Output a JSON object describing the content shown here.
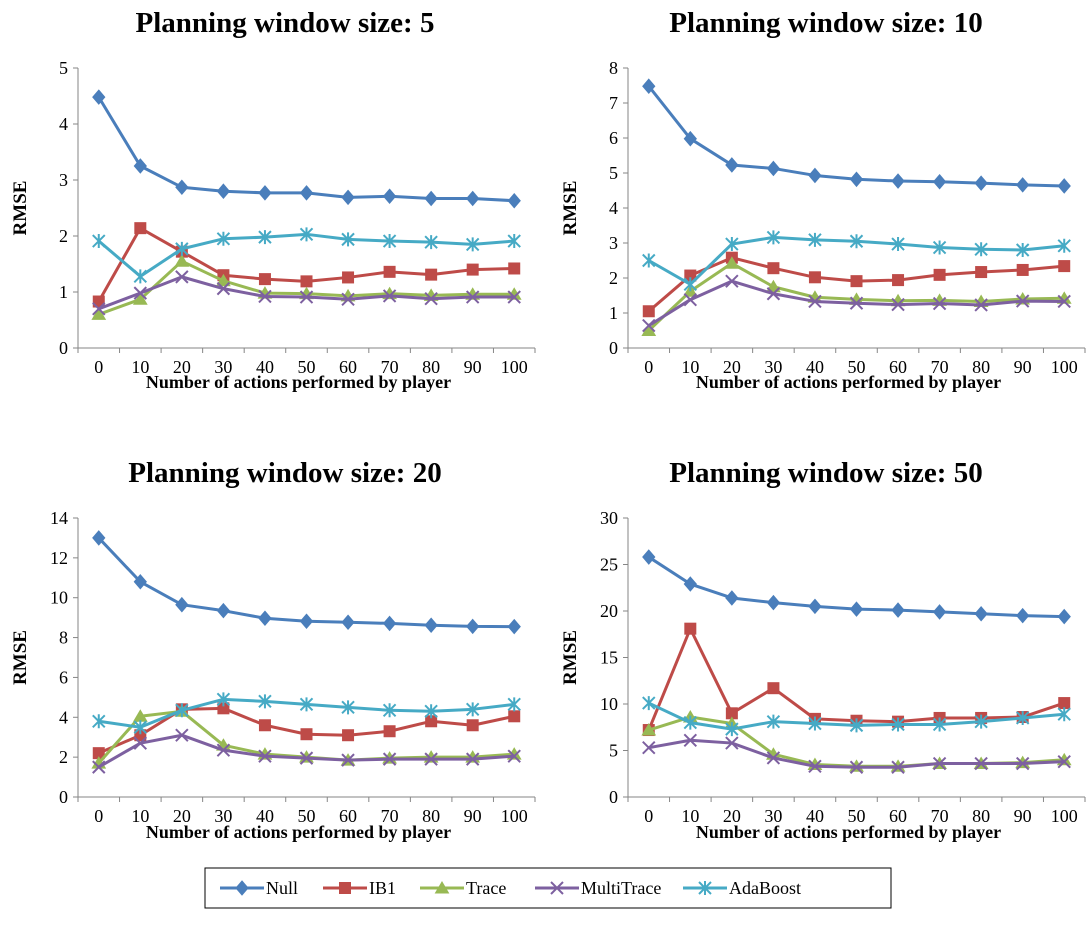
{
  "chart_data": [
    {
      "type": "line",
      "title": "Planning window size: 5",
      "xlabel": "Number of actions performed by player",
      "ylabel": "RMSE",
      "categories": [
        "0",
        "10",
        "20",
        "30",
        "40",
        "50",
        "60",
        "70",
        "80",
        "90",
        "100"
      ],
      "ylim": [
        0,
        5
      ],
      "yticks": [
        0,
        1,
        2,
        3,
        4,
        5
      ],
      "series": [
        {
          "name": "Null",
          "values": [
            4.48,
            3.25,
            2.87,
            2.8,
            2.77,
            2.77,
            2.69,
            2.71,
            2.67,
            2.67,
            2.63
          ]
        },
        {
          "name": "IB1",
          "values": [
            0.83,
            2.14,
            1.72,
            1.3,
            1.23,
            1.19,
            1.26,
            1.36,
            1.31,
            1.4,
            1.42
          ]
        },
        {
          "name": "Trace",
          "values": [
            0.6,
            0.87,
            1.55,
            1.2,
            0.98,
            0.97,
            0.93,
            0.97,
            0.94,
            0.96,
            0.96
          ]
        },
        {
          "name": "MultiTrace",
          "values": [
            0.7,
            0.98,
            1.27,
            1.06,
            0.92,
            0.91,
            0.87,
            0.93,
            0.88,
            0.91,
            0.91
          ]
        },
        {
          "name": "AdaBoost",
          "values": [
            1.91,
            1.28,
            1.77,
            1.95,
            1.98,
            2.03,
            1.94,
            1.91,
            1.89,
            1.85,
            1.91
          ]
        }
      ]
    },
    {
      "type": "line",
      "title": "Planning window size: 10",
      "xlabel": "Number of actions performed by player",
      "ylabel": "RMSE",
      "categories": [
        "0",
        "10",
        "20",
        "30",
        "40",
        "50",
        "60",
        "70",
        "80",
        "90",
        "100"
      ],
      "ylim": [
        0,
        8
      ],
      "yticks": [
        0,
        1,
        2,
        3,
        4,
        5,
        6,
        7,
        8
      ],
      "series": [
        {
          "name": "Null",
          "values": [
            7.48,
            5.98,
            5.23,
            5.13,
            4.93,
            4.82,
            4.77,
            4.75,
            4.71,
            4.66,
            4.63
          ]
        },
        {
          "name": "IB1",
          "values": [
            1.05,
            2.07,
            2.58,
            2.28,
            2.02,
            1.91,
            1.94,
            2.09,
            2.17,
            2.23,
            2.34
          ]
        },
        {
          "name": "Trace",
          "values": [
            0.5,
            1.62,
            2.42,
            1.75,
            1.45,
            1.39,
            1.35,
            1.36,
            1.33,
            1.4,
            1.42
          ]
        },
        {
          "name": "MultiTrace",
          "values": [
            0.64,
            1.38,
            1.91,
            1.55,
            1.33,
            1.28,
            1.24,
            1.27,
            1.23,
            1.34,
            1.33
          ]
        },
        {
          "name": "AdaBoost",
          "values": [
            2.5,
            1.82,
            2.97,
            3.16,
            3.09,
            3.05,
            2.97,
            2.87,
            2.82,
            2.8,
            2.92
          ]
        }
      ]
    },
    {
      "type": "line",
      "title": "Planning window size: 20",
      "xlabel": "Number of actions performed by player",
      "ylabel": "RMSE",
      "categories": [
        "0",
        "10",
        "20",
        "30",
        "40",
        "50",
        "60",
        "70",
        "80",
        "90",
        "100"
      ],
      "ylim": [
        0,
        14
      ],
      "yticks": [
        0,
        2,
        4,
        6,
        8,
        10,
        12,
        14
      ],
      "series": [
        {
          "name": "Null",
          "values": [
            13.0,
            10.8,
            9.65,
            9.35,
            8.97,
            8.82,
            8.77,
            8.71,
            8.62,
            8.56,
            8.55
          ]
        },
        {
          "name": "IB1",
          "values": [
            2.2,
            3.1,
            4.4,
            4.45,
            3.6,
            3.15,
            3.1,
            3.3,
            3.8,
            3.6,
            4.05
          ]
        },
        {
          "name": "Trace",
          "values": [
            1.7,
            4.05,
            4.3,
            2.6,
            2.15,
            2.0,
            1.85,
            1.95,
            2.0,
            2.0,
            2.15
          ]
        },
        {
          "name": "MultiTrace",
          "values": [
            1.5,
            2.7,
            3.1,
            2.35,
            2.05,
            1.95,
            1.85,
            1.9,
            1.9,
            1.9,
            2.05
          ]
        },
        {
          "name": "AdaBoost",
          "values": [
            3.8,
            3.5,
            4.35,
            4.9,
            4.8,
            4.65,
            4.5,
            4.35,
            4.3,
            4.4,
            4.65
          ]
        }
      ]
    },
    {
      "type": "line",
      "title": "Planning window size: 50",
      "xlabel": "Number of actions performed by player",
      "ylabel": "RMSE",
      "categories": [
        "0",
        "10",
        "20",
        "30",
        "40",
        "50",
        "60",
        "70",
        "80",
        "90",
        "100"
      ],
      "ylim": [
        0,
        30
      ],
      "yticks": [
        0,
        5,
        10,
        15,
        20,
        25,
        30
      ],
      "series": [
        {
          "name": "Null",
          "values": [
            25.8,
            22.9,
            21.4,
            20.9,
            20.5,
            20.2,
            20.1,
            19.9,
            19.7,
            19.5,
            19.4
          ]
        },
        {
          "name": "IB1",
          "values": [
            7.2,
            18.1,
            9.0,
            11.7,
            8.4,
            8.2,
            8.1,
            8.5,
            8.5,
            8.6,
            10.1
          ]
        },
        {
          "name": "Trace",
          "values": [
            7.2,
            8.6,
            7.9,
            4.6,
            3.5,
            3.3,
            3.3,
            3.6,
            3.6,
            3.7,
            4.0
          ]
        },
        {
          "name": "MultiTrace",
          "values": [
            5.3,
            6.1,
            5.8,
            4.2,
            3.3,
            3.2,
            3.2,
            3.6,
            3.6,
            3.6,
            3.8
          ]
        },
        {
          "name": "AdaBoost",
          "values": [
            10.1,
            8.0,
            7.3,
            8.1,
            7.9,
            7.7,
            7.8,
            7.8,
            8.1,
            8.5,
            8.9
          ]
        }
      ]
    }
  ],
  "legend": {
    "placement": "bottom-center",
    "items": [
      {
        "name": "Null",
        "color": "#4A7EBB",
        "marker": "diamond"
      },
      {
        "name": "IB1",
        "color": "#BE4B48",
        "marker": "square"
      },
      {
        "name": "Trace",
        "color": "#98B954",
        "marker": "triangle"
      },
      {
        "name": "MultiTrace",
        "color": "#7D60A0",
        "marker": "x"
      },
      {
        "name": "AdaBoost",
        "color": "#46AAC5",
        "marker": "asterisk"
      }
    ]
  }
}
